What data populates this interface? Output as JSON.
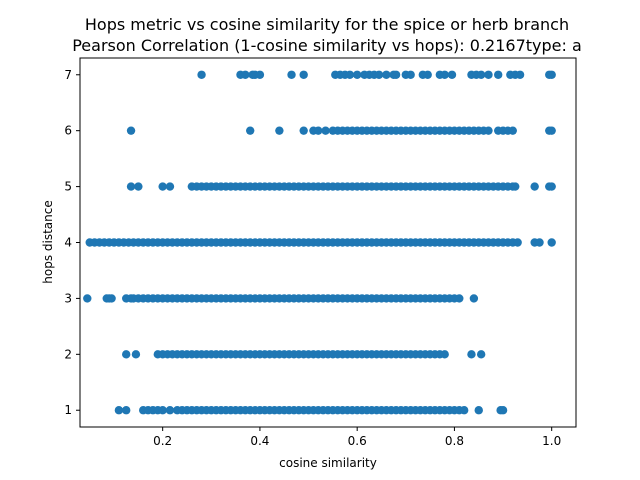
{
  "chart_data": {
    "type": "scatter",
    "title_line1": "Hops metric vs cosine similarity for the spice or herb branch",
    "title_line2": "Pearson Correlation (1-cosine similarity vs hops): 0.2167type: a",
    "xlabel": "cosine similarity",
    "ylabel": "hops distance",
    "xlim": [
      0.03,
      1.05
    ],
    "ylim": [
      0.7,
      7.3
    ],
    "xticks": [
      0.2,
      0.4,
      0.6,
      0.8,
      1.0
    ],
    "xtick_labels": [
      "0.2",
      "0.4",
      "0.6",
      "0.8",
      "1.0"
    ],
    "yticks": [
      1,
      2,
      3,
      4,
      5,
      6,
      7
    ],
    "ytick_labels": [
      "1",
      "2",
      "3",
      "4",
      "5",
      "6",
      "7"
    ],
    "grid": false,
    "legend": "none",
    "marker_color": "#1f77b4",
    "rows": [
      {
        "y": 7,
        "x": [
          0.28,
          0.36,
          0.37,
          0.385,
          0.39,
          0.4,
          0.465,
          0.49,
          0.555,
          0.565,
          0.575,
          0.585,
          0.6,
          0.615,
          0.625,
          0.635,
          0.645,
          0.66,
          0.675,
          0.68,
          0.7,
          0.71,
          0.735,
          0.745,
          0.77,
          0.78,
          0.795,
          0.835,
          0.845,
          0.855,
          0.87,
          0.89,
          0.915,
          0.925,
          0.935,
          0.995,
          1.0
        ]
      },
      {
        "y": 6,
        "x": [
          0.135,
          0.38,
          0.44,
          0.49,
          0.51,
          0.52,
          0.535,
          0.55,
          0.56,
          0.57,
          0.58,
          0.59,
          0.6,
          0.61,
          0.62,
          0.63,
          0.64,
          0.65,
          0.66,
          0.67,
          0.68,
          0.69,
          0.7,
          0.71,
          0.72,
          0.73,
          0.74,
          0.75,
          0.76,
          0.77,
          0.78,
          0.79,
          0.8,
          0.81,
          0.82,
          0.83,
          0.84,
          0.85,
          0.86,
          0.87,
          0.89,
          0.9,
          0.91,
          0.92,
          0.995,
          1.0
        ]
      },
      {
        "y": 5,
        "x": [
          0.135,
          0.15,
          0.2,
          0.215,
          0.26,
          0.27,
          0.28,
          0.29,
          0.3,
          0.31,
          0.32,
          0.33,
          0.34,
          0.35,
          0.36,
          0.37,
          0.38,
          0.39,
          0.4,
          0.41,
          0.42,
          0.43,
          0.44,
          0.45,
          0.46,
          0.47,
          0.48,
          0.49,
          0.5,
          0.51,
          0.52,
          0.53,
          0.54,
          0.55,
          0.56,
          0.57,
          0.58,
          0.59,
          0.6,
          0.61,
          0.62,
          0.63,
          0.64,
          0.65,
          0.66,
          0.67,
          0.68,
          0.69,
          0.7,
          0.71,
          0.72,
          0.73,
          0.74,
          0.75,
          0.76,
          0.77,
          0.78,
          0.79,
          0.8,
          0.81,
          0.82,
          0.83,
          0.84,
          0.85,
          0.86,
          0.87,
          0.88,
          0.89,
          0.9,
          0.91,
          0.92,
          0.925,
          0.965,
          0.995,
          1.0
        ]
      },
      {
        "y": 4,
        "x": [
          0.05,
          0.06,
          0.07,
          0.08,
          0.09,
          0.1,
          0.11,
          0.12,
          0.13,
          0.14,
          0.15,
          0.16,
          0.17,
          0.18,
          0.19,
          0.2,
          0.21,
          0.22,
          0.23,
          0.24,
          0.25,
          0.26,
          0.27,
          0.28,
          0.29,
          0.3,
          0.31,
          0.32,
          0.33,
          0.34,
          0.35,
          0.36,
          0.37,
          0.38,
          0.39,
          0.4,
          0.41,
          0.42,
          0.43,
          0.44,
          0.45,
          0.46,
          0.47,
          0.48,
          0.49,
          0.5,
          0.51,
          0.52,
          0.53,
          0.54,
          0.55,
          0.56,
          0.57,
          0.58,
          0.59,
          0.6,
          0.61,
          0.62,
          0.63,
          0.64,
          0.65,
          0.66,
          0.67,
          0.68,
          0.69,
          0.7,
          0.71,
          0.72,
          0.73,
          0.74,
          0.75,
          0.76,
          0.77,
          0.78,
          0.79,
          0.8,
          0.81,
          0.82,
          0.83,
          0.84,
          0.85,
          0.86,
          0.87,
          0.88,
          0.89,
          0.9,
          0.91,
          0.92,
          0.93,
          0.965,
          0.975,
          1.0
        ]
      },
      {
        "y": 3,
        "x": [
          0.045,
          0.085,
          0.09,
          0.095,
          0.125,
          0.135,
          0.14,
          0.15,
          0.16,
          0.17,
          0.18,
          0.19,
          0.2,
          0.21,
          0.22,
          0.23,
          0.24,
          0.25,
          0.26,
          0.27,
          0.28,
          0.29,
          0.3,
          0.31,
          0.32,
          0.33,
          0.34,
          0.35,
          0.36,
          0.37,
          0.38,
          0.39,
          0.4,
          0.41,
          0.42,
          0.43,
          0.44,
          0.45,
          0.46,
          0.47,
          0.48,
          0.49,
          0.5,
          0.51,
          0.52,
          0.53,
          0.54,
          0.55,
          0.56,
          0.57,
          0.58,
          0.59,
          0.6,
          0.61,
          0.62,
          0.63,
          0.64,
          0.65,
          0.66,
          0.67,
          0.68,
          0.69,
          0.7,
          0.71,
          0.72,
          0.73,
          0.74,
          0.75,
          0.76,
          0.77,
          0.78,
          0.79,
          0.8,
          0.81,
          0.84
        ]
      },
      {
        "y": 2,
        "x": [
          0.125,
          0.145,
          0.19,
          0.2,
          0.21,
          0.22,
          0.23,
          0.24,
          0.25,
          0.26,
          0.27,
          0.28,
          0.29,
          0.3,
          0.31,
          0.32,
          0.33,
          0.34,
          0.35,
          0.36,
          0.37,
          0.38,
          0.39,
          0.4,
          0.41,
          0.42,
          0.43,
          0.44,
          0.45,
          0.46,
          0.47,
          0.48,
          0.49,
          0.5,
          0.51,
          0.52,
          0.53,
          0.54,
          0.55,
          0.56,
          0.57,
          0.58,
          0.59,
          0.6,
          0.61,
          0.62,
          0.63,
          0.64,
          0.65,
          0.66,
          0.67,
          0.68,
          0.69,
          0.7,
          0.71,
          0.72,
          0.73,
          0.74,
          0.75,
          0.76,
          0.77,
          0.78,
          0.835,
          0.855
        ]
      },
      {
        "y": 1,
        "x": [
          0.11,
          0.125,
          0.16,
          0.17,
          0.18,
          0.19,
          0.2,
          0.215,
          0.23,
          0.24,
          0.25,
          0.26,
          0.27,
          0.28,
          0.29,
          0.3,
          0.31,
          0.32,
          0.33,
          0.34,
          0.35,
          0.36,
          0.37,
          0.38,
          0.39,
          0.4,
          0.41,
          0.42,
          0.43,
          0.44,
          0.45,
          0.46,
          0.47,
          0.48,
          0.49,
          0.5,
          0.51,
          0.52,
          0.53,
          0.54,
          0.55,
          0.56,
          0.57,
          0.58,
          0.59,
          0.6,
          0.61,
          0.62,
          0.63,
          0.64,
          0.65,
          0.66,
          0.67,
          0.68,
          0.69,
          0.7,
          0.71,
          0.72,
          0.73,
          0.74,
          0.75,
          0.76,
          0.77,
          0.78,
          0.79,
          0.8,
          0.81,
          0.82,
          0.85,
          0.895,
          0.9
        ]
      }
    ]
  }
}
